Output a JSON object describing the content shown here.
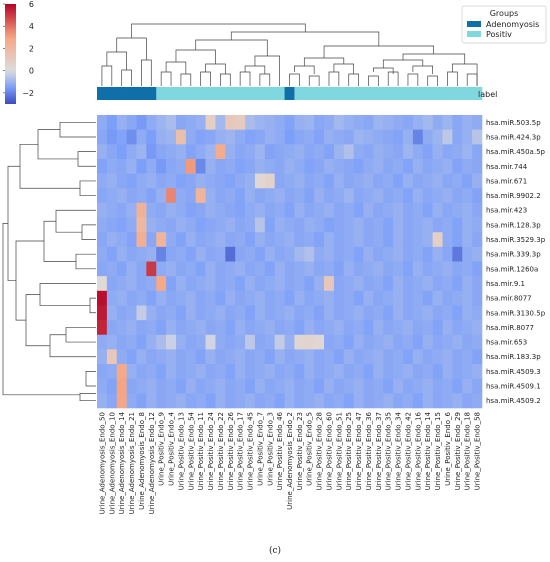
{
  "chart_data": {
    "type": "heatmap",
    "title": "",
    "caption": "(c)",
    "annotation_row_label": "label",
    "legend": {
      "title": "Groups",
      "placement": "top-right",
      "entries": [
        {
          "name": "Adenomyosis",
          "color": "#0f6fa8"
        },
        {
          "name": "Positiv",
          "color": "#7fd8e0"
        }
      ]
    },
    "colorbar": {
      "range": [
        -3,
        6
      ],
      "ticks": [
        -2,
        0,
        2,
        4,
        6
      ],
      "tick_labels": [
        "−2",
        "0",
        "2",
        "4",
        "6"
      ],
      "colormap": "coolwarm"
    },
    "columns": [
      "Urine_Adenomyosis_Endo_50",
      "Urine_Adenomyosis_Endo_10",
      "Urine_Adenomyosis_Endo_14",
      "Urine_Adenomyosis_Endo_21",
      "Urine_Adenomyosis_Endo_8",
      "Urine_Adenomyosis_Endo_12",
      "Urine_Positiv_Endo_9",
      "Urine_Positiv_Endo_4",
      "Urine_Positiv_Endo_13",
      "Urine_Positiv_Endo_54",
      "Urine_Positiv_Endo_11",
      "Urine_Positiv_Endo_24",
      "Urine_Positiv_Endo_22",
      "Urine_Positiv_Endo_26",
      "Urine_Positiv_Endo_17",
      "Urine_Positiv_Endo_45",
      "Urine_Positiv_Endo_7",
      "Urine_Positiv_Endo_3",
      "Urine_Positiv_Endo_46",
      "Urine_Adenomyosis_Endo_2",
      "Urine_Positiv_Endo_23",
      "Urine_Positiv_Endo_5",
      "Urine_Positiv_Endo_28",
      "Urine_Positiv_Endo_60",
      "Urine_Positiv_Endo_51",
      "Urine_Positiv_Endo_25",
      "Urine_Positiv_Endo_47",
      "Urine_Positiv_Endo_36",
      "Urine_Positiv_Endo_37",
      "Urine_Positiv_Endo_35",
      "Urine_Positiv_Endo_34",
      "Urine_Positiv_Endo_42",
      "Urine_Positiv_Endo_16",
      "Urine_Positiv_Endo_14",
      "Urine_Positiv_Endo_15",
      "Urine_Positiv_Endo_6",
      "Urine_Positiv_Endo_29",
      "Urine_Positiv_Endo_18",
      "Urine_Positiv_Endo_58"
    ],
    "column_groups": [
      "Adenomyosis",
      "Adenomyosis",
      "Adenomyosis",
      "Adenomyosis",
      "Adenomyosis",
      "Adenomyosis",
      "Positiv",
      "Positiv",
      "Positiv",
      "Positiv",
      "Positiv",
      "Positiv",
      "Positiv",
      "Positiv",
      "Positiv",
      "Positiv",
      "Positiv",
      "Positiv",
      "Positiv",
      "Adenomyosis",
      "Positiv",
      "Positiv",
      "Positiv",
      "Positiv",
      "Positiv",
      "Positiv",
      "Positiv",
      "Positiv",
      "Positiv",
      "Positiv",
      "Positiv",
      "Positiv",
      "Positiv",
      "Positiv",
      "Positiv",
      "Positiv",
      "Positiv",
      "Positiv",
      "Positiv"
    ],
    "rows": [
      "hsa.miR.503.5p",
      "hsa.miR.424.3p",
      "hsa.miR.450a.5p",
      "hsa.mir.744",
      "hsa.mir.671",
      "hsa.miR.9902.2",
      "hsa.mir.423",
      "hsa.miR.128.3p",
      "hsa.miR.3529.3p",
      "hsa.miR.339.3p",
      "hsa.miR.1260a",
      "hsa.mir.9.1",
      "hsa.mir.8077",
      "hsa.miR.3130.5p",
      "hsa.miR.8077",
      "hsa.mir.653",
      "hsa.miR.183.3p",
      "hsa.miR.4509.3",
      "hsa.miR.4509.1",
      "hsa.miR.4509.2"
    ],
    "values": [
      [
        -1.2,
        -1.5,
        -1.1,
        -1.3,
        -1.6,
        -1.2,
        -1.0,
        -0.8,
        -1.3,
        -1.2,
        -1.1,
        0.8,
        -0.9,
        1.2,
        1.0,
        -0.8,
        -1.0,
        -1.1,
        -1.2,
        -1.4,
        -1.1,
        -1.0,
        -1.3,
        -1.2,
        -0.9,
        -1.1,
        -1.2,
        -1.3,
        -1.0,
        -1.1,
        -1.2,
        -1.3,
        -1.1,
        -0.9,
        -1.2,
        -1.0,
        -1.3,
        -1.1,
        -1.2
      ],
      [
        -1.3,
        -1.6,
        -1.4,
        -1.8,
        -1.2,
        -1.5,
        -1.1,
        -1.0,
        1.6,
        -1.2,
        -1.4,
        -1.3,
        -1.1,
        -1.0,
        -1.2,
        -1.4,
        -1.3,
        -1.1,
        -1.2,
        -1.5,
        -1.3,
        -1.2,
        -1.4,
        -1.1,
        -1.2,
        -1.3,
        -1.0,
        -1.1,
        -1.2,
        -1.3,
        -1.4,
        -1.1,
        -2.0,
        -1.2,
        -1.0,
        -0.5,
        -1.3,
        -1.1,
        -0.6
      ],
      [
        -1.1,
        -1.3,
        -1.5,
        -1.2,
        -1.0,
        -1.6,
        -1.3,
        -1.2,
        -1.1,
        -1.4,
        -1.2,
        -1.0,
        2.6,
        -1.1,
        -1.3,
        -1.2,
        -1.0,
        -1.4,
        -1.3,
        -1.2,
        -1.1,
        -1.3,
        -1.2,
        -1.4,
        -1.0,
        -0.7,
        -1.2,
        -1.3,
        -1.1,
        -1.2,
        -1.3,
        -1.0,
        -1.2,
        -1.4,
        -1.1,
        -1.3,
        -1.2,
        -1.0,
        -1.3
      ],
      [
        -1.4,
        -1.2,
        -1.3,
        -1.1,
        -1.5,
        -1.2,
        -1.6,
        -1.3,
        -1.2,
        3.2,
        -1.9,
        -1.1,
        -1.3,
        -1.2,
        -1.4,
        -1.3,
        -1.1,
        -1.2,
        -1.3,
        -1.1,
        -1.2,
        -1.4,
        -1.3,
        -1.1,
        -1.2,
        -1.3,
        -1.4,
        -1.2,
        -1.1,
        -1.3,
        -1.2,
        -1.4,
        -1.1,
        -1.3,
        -1.2,
        -1.1,
        -1.4,
        -1.2,
        -1.3
      ],
      [
        -1.2,
        -1.1,
        -1.3,
        -1.4,
        -1.2,
        -1.1,
        -1.3,
        -1.2,
        -1.4,
        -1.3,
        -1.1,
        -1.2,
        -1.3,
        -1.4,
        -1.2,
        -1.1,
        0.3,
        0.6,
        -1.3,
        -1.2,
        -1.1,
        -1.3,
        -1.2,
        -1.4,
        -1.1,
        -1.3,
        -1.2,
        -1.1,
        -1.3,
        -1.2,
        -1.4,
        -1.1,
        -1.3,
        -1.2,
        -1.1,
        -1.3,
        -1.2,
        -1.4,
        -1.1
      ],
      [
        -1.3,
        -1.2,
        -1.1,
        -1.3,
        -1.2,
        -1.4,
        -1.1,
        3.6,
        -1.2,
        -1.3,
        2.2,
        -1.1,
        -1.3,
        -1.2,
        -1.4,
        -1.1,
        -1.3,
        -1.2,
        -1.1,
        -1.3,
        -1.2,
        -1.4,
        -1.1,
        -1.3,
        -1.2,
        -1.0,
        -1.3,
        -1.2,
        -1.1,
        -1.3,
        -1.2,
        -1.4,
        -1.1,
        -1.3,
        -1.2,
        -1.1,
        -1.3,
        -1.2,
        -1.4
      ],
      [
        -1.1,
        -1.2,
        -1.3,
        -1.1,
        2.3,
        -1.2,
        -1.3,
        -1.1,
        -1.2,
        -1.4,
        -1.3,
        -1.1,
        -1.2,
        -1.3,
        -1.4,
        -1.2,
        -1.1,
        -1.3,
        -1.2,
        -1.4,
        -1.1,
        -1.3,
        -1.2,
        -1.1,
        -1.3,
        -1.2,
        -1.4,
        -1.1,
        -1.3,
        -1.2,
        -1.1,
        -1.3,
        -1.2,
        -1.4,
        -1.1,
        -1.3,
        -1.2,
        -1.1,
        -1.3
      ],
      [
        -1.2,
        -1.3,
        -1.4,
        -1.2,
        2.0,
        -1.1,
        -1.2,
        -1.3,
        -1.1,
        -1.2,
        -1.4,
        -1.3,
        -1.2,
        -1.1,
        -1.3,
        -1.2,
        -0.6,
        -1.4,
        -1.1,
        -1.2,
        -1.3,
        -1.1,
        -1.2,
        -1.4,
        -1.3,
        -1.2,
        -1.1,
        -1.3,
        -1.2,
        -1.4,
        -1.1,
        -1.3,
        -1.2,
        -1.1,
        -1.3,
        -1.2,
        -1.4,
        -1.1,
        -1.2
      ],
      [
        -1.3,
        -1.1,
        -1.2,
        -1.4,
        2.4,
        -1.3,
        2.2,
        -1.2,
        -1.4,
        -1.1,
        -1.3,
        -1.2,
        -1.1,
        -1.3,
        -1.2,
        -1.4,
        -1.1,
        -1.3,
        -1.2,
        -1.1,
        -1.3,
        -1.2,
        -1.4,
        -1.1,
        -1.3,
        -1.2,
        -1.1,
        -1.3,
        -1.2,
        -1.4,
        -1.1,
        -1.3,
        -1.2,
        -1.1,
        0.8,
        -1.2,
        -1.4,
        -1.1,
        -1.3
      ],
      [
        -1.2,
        -1.4,
        -1.1,
        -1.3,
        -1.2,
        -1.1,
        -2.0,
        -1.3,
        -1.2,
        -1.4,
        -1.1,
        -1.3,
        -1.2,
        -2.4,
        -1.3,
        -1.2,
        -1.4,
        -1.1,
        -1.3,
        -1.2,
        -0.9,
        -0.7,
        -1.2,
        -1.1,
        -1.3,
        -1.2,
        -1.4,
        -1.1,
        -1.3,
        -1.2,
        -1.1,
        -1.3,
        -1.2,
        -1.4,
        -1.1,
        -1.3,
        -2.2,
        -1.2,
        -1.1
      ],
      [
        -1.3,
        -1.2,
        -1.4,
        -1.1,
        -1.3,
        5.0,
        -1.2,
        -1.1,
        -1.3,
        -1.2,
        -1.4,
        -1.1,
        -1.3,
        -1.2,
        -1.1,
        -1.3,
        -1.2,
        -1.4,
        -1.1,
        -1.3,
        -1.2,
        -1.1,
        -1.3,
        -1.2,
        -1.4,
        -1.1,
        -1.3,
        -1.2,
        -1.1,
        -1.3,
        -1.2,
        -1.4,
        -1.1,
        -1.3,
        -1.2,
        -1.1,
        -1.3,
        -1.2,
        -1.4
      ],
      [
        0.2,
        -1.3,
        -1.2,
        -1.1,
        -1.3,
        -1.2,
        2.8,
        -1.4,
        -1.1,
        -1.3,
        -1.2,
        -1.1,
        -1.3,
        -1.2,
        -1.4,
        -1.1,
        -1.3,
        -1.2,
        -1.1,
        -1.3,
        -1.2,
        -1.4,
        -1.1,
        1.2,
        -1.3,
        -1.2,
        -1.1,
        -1.3,
        -1.2,
        -1.4,
        -1.1,
        -1.3,
        -1.2,
        -1.1,
        -1.3,
        -1.2,
        -1.4,
        -1.1,
        -1.3
      ],
      [
        5.8,
        -1.2,
        -1.1,
        -1.3,
        -1.2,
        -1.4,
        -1.1,
        -1.3,
        -1.2,
        -1.1,
        -1.3,
        -1.2,
        -1.4,
        -1.1,
        -1.3,
        -1.2,
        -1.1,
        -1.3,
        -1.2,
        -1.4,
        -1.1,
        -1.3,
        -1.2,
        -1.1,
        -1.3,
        -1.2,
        -1.4,
        -1.1,
        -1.3,
        -1.2,
        -1.1,
        -1.3,
        -1.2,
        -1.4,
        -1.1,
        -1.3,
        -1.2,
        -1.1,
        -1.3
      ],
      [
        5.6,
        -1.1,
        -1.3,
        -1.2,
        -0.4,
        -1.1,
        -1.3,
        -1.2,
        -1.4,
        -1.1,
        -1.3,
        -1.2,
        -1.1,
        -1.3,
        -1.2,
        -1.4,
        -1.1,
        -1.3,
        -1.2,
        -1.1,
        -1.3,
        -1.2,
        -1.4,
        -1.1,
        -1.3,
        -1.2,
        -1.1,
        -1.3,
        -1.2,
        -1.4,
        -1.1,
        -1.3,
        -1.2,
        -1.1,
        -1.3,
        -1.2,
        -1.4,
        -1.1,
        -1.2
      ],
      [
        5.4,
        -1.3,
        -1.2,
        -1.1,
        -1.3,
        -1.2,
        -1.4,
        -1.1,
        -1.3,
        -1.2,
        -1.1,
        -1.3,
        -1.2,
        -1.4,
        -1.1,
        -1.3,
        -1.2,
        -1.1,
        -1.3,
        -1.2,
        -1.4,
        -1.1,
        -1.3,
        -1.2,
        -1.1,
        -1.3,
        -1.2,
        -1.4,
        -1.1,
        -1.3,
        -1.2,
        -1.1,
        -1.3,
        -1.2,
        -1.4,
        -1.1,
        -1.3,
        -1.2,
        -1.1
      ],
      [
        -1.2,
        -1.1,
        -1.3,
        -1.2,
        -1.4,
        -1.1,
        -0.8,
        -0.3,
        -1.1,
        -1.3,
        -1.2,
        -0.2,
        -1.2,
        -1.3,
        -1.2,
        -0.5,
        -1.3,
        -1.2,
        -0.4,
        -1.1,
        0.4,
        0.5,
        0.3,
        -1.3,
        -1.2,
        -1.4,
        -1.1,
        -1.3,
        -1.2,
        -1.1,
        -1.3,
        -1.2,
        -1.4,
        -1.1,
        -1.3,
        -1.2,
        -1.1,
        -1.3,
        -1.2
      ],
      [
        -1.1,
        1.2,
        -1.2,
        -1.4,
        -1.1,
        -1.3,
        -1.2,
        -1.1,
        -1.3,
        -1.2,
        -1.4,
        -1.1,
        -1.3,
        -1.2,
        -1.1,
        -1.3,
        -1.2,
        -1.4,
        -1.1,
        -1.3,
        -1.2,
        -1.1,
        -1.3,
        -1.2,
        -1.4,
        -1.1,
        -1.3,
        -1.2,
        -1.1,
        -1.3,
        -1.2,
        -1.4,
        -1.1,
        -1.3,
        -1.2,
        -1.1,
        -1.3,
        -1.2,
        -1.4
      ],
      [
        -1.3,
        -1.2,
        2.8,
        -1.1,
        -1.3,
        -1.2,
        -1.4,
        -1.1,
        -1.3,
        -1.2,
        -1.1,
        -1.3,
        -1.2,
        -1.4,
        -1.1,
        -1.3,
        -1.2,
        -1.1,
        -1.3,
        -1.2,
        -1.4,
        -1.1,
        -1.3,
        -1.2,
        -1.1,
        -1.3,
        -1.2,
        -1.4,
        -1.1,
        -1.3,
        -1.2,
        -1.1,
        -1.3,
        -1.2,
        -1.4,
        -1.1,
        -1.3,
        -1.2,
        -1.1
      ],
      [
        -1.2,
        -1.4,
        3.0,
        -1.3,
        -1.2,
        -1.1,
        -1.3,
        -1.2,
        -1.4,
        -1.1,
        -1.3,
        -1.2,
        -1.1,
        -1.3,
        -1.2,
        -1.4,
        -1.1,
        -1.3,
        -1.2,
        -1.1,
        -1.3,
        -1.2,
        -1.4,
        -1.1,
        -1.3,
        -1.2,
        -1.1,
        -1.3,
        -1.2,
        -1.4,
        -1.1,
        -1.3,
        -1.2,
        -1.1,
        -1.3,
        -1.2,
        -1.4,
        -1.1,
        -1.3
      ],
      [
        -1.1,
        -1.3,
        2.9,
        -1.2,
        -1.4,
        -1.1,
        -1.3,
        -1.2,
        -1.1,
        -1.3,
        -1.2,
        -1.4,
        -1.1,
        -1.3,
        -1.2,
        -1.1,
        -1.3,
        -1.2,
        -1.4,
        -1.1,
        -1.3,
        -1.2,
        -1.1,
        -1.3,
        -1.2,
        -1.4,
        -1.1,
        -1.3,
        -1.2,
        -1.1,
        -1.3,
        -1.2,
        -1.4,
        -1.1,
        -1.3,
        -1.2,
        -1.1,
        -1.3,
        -1.2
      ]
    ],
    "row_dendrogram": [
      [
        0,
        1
      ],
      [
        16,
        17
      ],
      [
        2,
        3
      ],
      [
        4,
        5
      ],
      [
        7,
        8
      ],
      [
        9,
        10
      ],
      [
        18,
        19
      ],
      [
        12,
        13
      ],
      [
        14,
        15
      ],
      [
        23,
        14
      ],
      [
        11,
        24
      ],
      [
        20,
        21
      ],
      [
        22,
        6
      ],
      [
        26,
        27
      ],
      [
        28,
        25
      ],
      [
        29,
        23
      ],
      [
        30,
        31
      ],
      [
        32,
        33
      ],
      [
        34,
        35
      ],
      [
        36,
        37
      ]
    ],
    "col_dendrogram": true
  }
}
